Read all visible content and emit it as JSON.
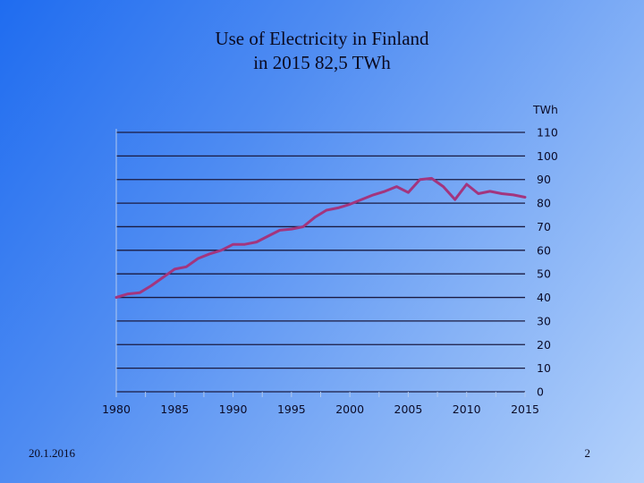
{
  "slide": {
    "title_line1": "Use of Electricity in Finland",
    "title_line2": "in 2015 82,5 TWh",
    "footer_date": "20.1.2016",
    "page_number": "2"
  },
  "colors": {
    "series": "#a3357e",
    "gridline": "#1a1a40",
    "text": "#0b0b28"
  },
  "chart_data": {
    "type": "line",
    "title": "",
    "xlabel": "",
    "ylabel": "TWh",
    "xlim": [
      1980,
      2015
    ],
    "ylim": [
      0,
      110
    ],
    "xticks": [
      "1980",
      "1985",
      "1990",
      "1995",
      "2000",
      "2005",
      "2010",
      "2015"
    ],
    "yticks": [
      "0",
      "10",
      "20",
      "30",
      "40",
      "50",
      "60",
      "70",
      "80",
      "90",
      "100",
      "110"
    ],
    "y_axis_side": "right",
    "grid": true,
    "legend": false,
    "series": [
      {
        "x": [
          1980,
          1981,
          1982,
          1983,
          1984,
          1985,
          1986,
          1987,
          1988,
          1989,
          1990,
          1991,
          1992,
          1993,
          1994,
          1995,
          1996,
          1997,
          1998,
          1999,
          2000,
          2001,
          2002,
          2003,
          2004,
          2005,
          2006,
          2007,
          2008,
          2009,
          2010,
          2011,
          2012,
          2013,
          2014,
          2015
        ],
        "y": [
          40,
          41.5,
          42,
          45,
          48.5,
          52,
          53,
          56.5,
          58.5,
          60,
          62.5,
          62.5,
          63.5,
          66,
          68.5,
          69,
          70,
          74,
          77,
          78,
          79.5,
          81.5,
          83.5,
          85,
          87,
          84.5,
          90,
          90.5,
          87,
          81.5,
          88,
          84,
          85,
          84,
          83.5,
          82.5
        ]
      }
    ]
  }
}
